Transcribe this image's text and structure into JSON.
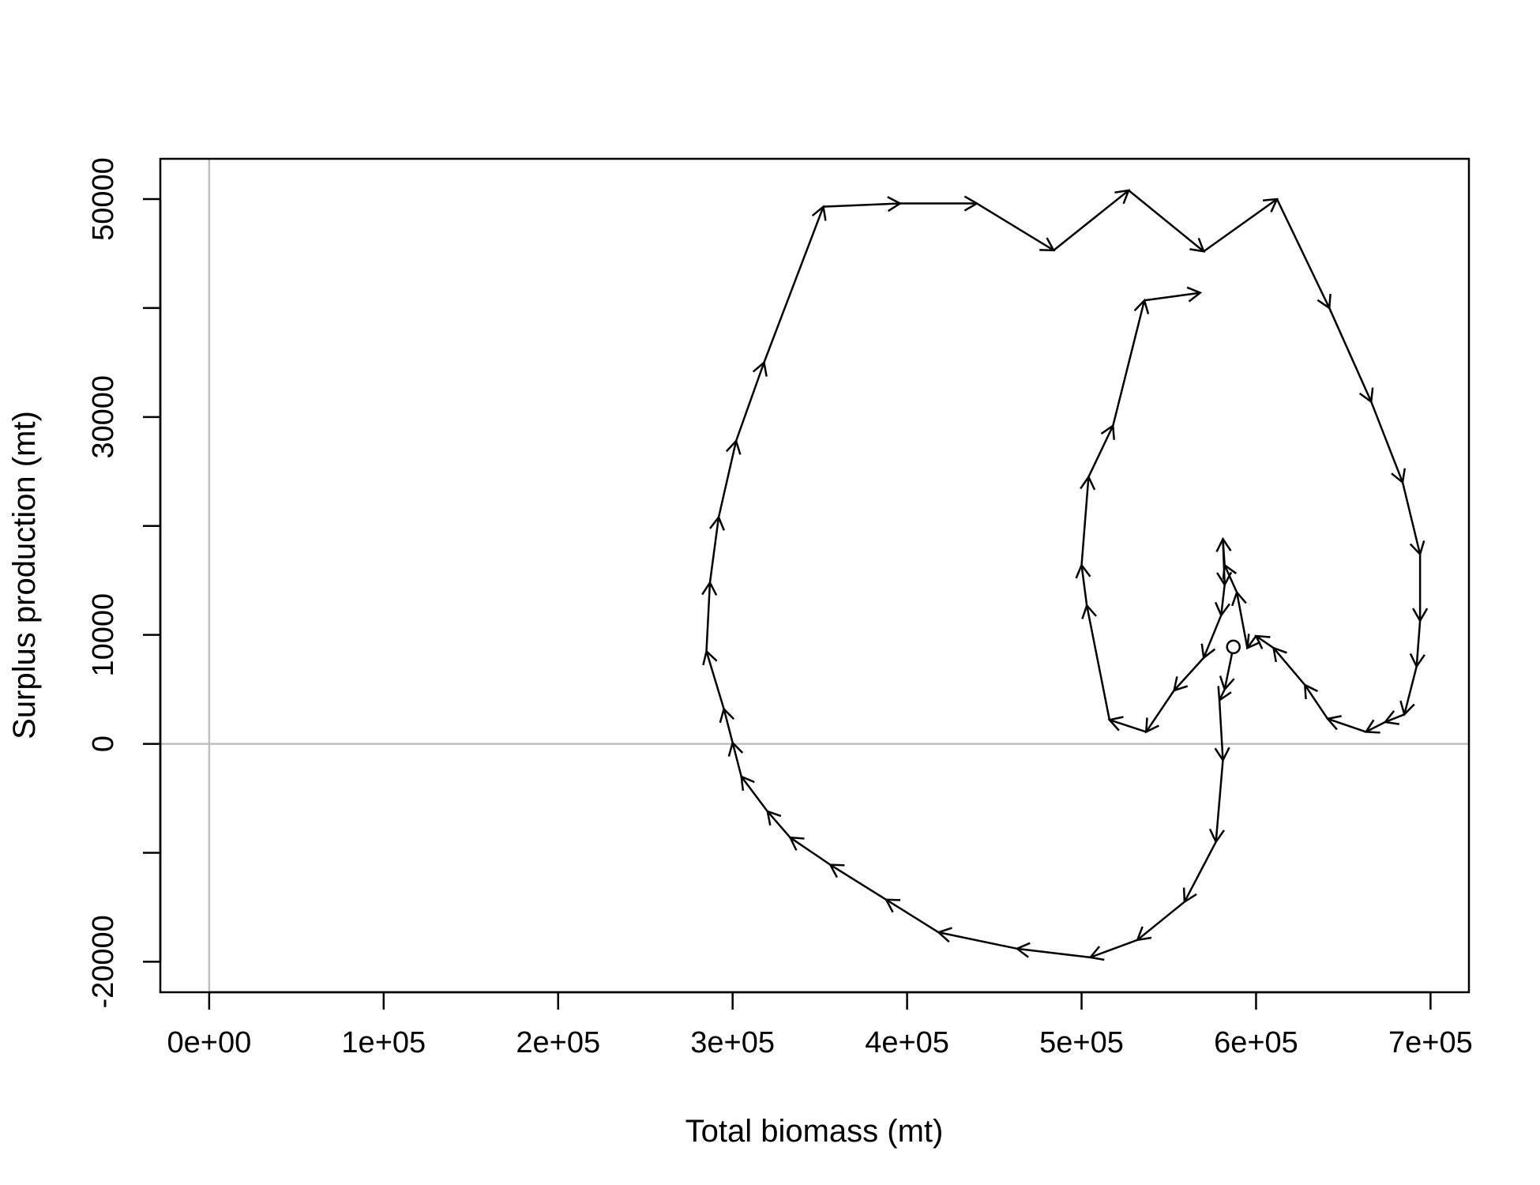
{
  "chart_data": {
    "type": "line",
    "title": "",
    "xlabel": "Total biomass (mt)",
    "ylabel": "Surplus production (mt)",
    "xlim": [
      -28000,
      722000
    ],
    "ylim": [
      -22800,
      53700
    ],
    "x_ticks": [
      0,
      100000,
      200000,
      300000,
      400000,
      500000,
      600000,
      700000
    ],
    "x_tick_labels": [
      "0e+00",
      "1e+05",
      "2e+05",
      "3e+05",
      "4e+05",
      "5e+05",
      "6e+05",
      "7e+05"
    ],
    "y_ticks": [
      -20000,
      -10000,
      0,
      10000,
      20000,
      30000,
      40000,
      50000
    ],
    "y_tick_labels": [
      "-20000",
      "",
      "0",
      "10000",
      "",
      "30000",
      "",
      "50000"
    ],
    "reference_lines": {
      "x": 0,
      "y": 0,
      "color": "#bebebe"
    },
    "line_color": "#000000",
    "grid": false,
    "start_marker": {
      "x": 587000,
      "y": 8900,
      "shape": "open-circle"
    },
    "series": [
      {
        "points": [
          [
            587000,
            8900
          ],
          [
            582000,
            5000
          ],
          [
            579000,
            4000
          ],
          [
            581000,
            -1500
          ],
          [
            577000,
            -9000
          ],
          [
            559000,
            -14500
          ],
          [
            532000,
            -18000
          ],
          [
            505000,
            -19600
          ],
          [
            463000,
            -18800
          ],
          [
            418000,
            -17300
          ],
          [
            388000,
            -14300
          ],
          [
            356000,
            -11100
          ],
          [
            333000,
            -8600
          ],
          [
            320000,
            -6200
          ],
          [
            305000,
            -3000
          ],
          [
            300000,
            100
          ],
          [
            295000,
            3200
          ],
          [
            285000,
            8500
          ],
          [
            287000,
            14800
          ],
          [
            292000,
            20800
          ],
          [
            302000,
            27800
          ],
          [
            318000,
            35000
          ],
          [
            352000,
            49300
          ],
          [
            396000,
            49600
          ],
          [
            440000,
            49600
          ],
          [
            484000,
            45300
          ],
          [
            527000,
            50800
          ],
          [
            570000,
            45200
          ],
          [
            612000,
            50000
          ],
          [
            642000,
            40000
          ],
          [
            666000,
            31400
          ],
          [
            684000,
            24000
          ],
          [
            694000,
            17400
          ],
          [
            694000,
            11300
          ],
          [
            692000,
            7100
          ],
          [
            685000,
            2700
          ],
          [
            674000,
            2000
          ],
          [
            663000,
            1100
          ],
          [
            641000,
            2300
          ],
          [
            628000,
            5400
          ],
          [
            610000,
            8800
          ],
          [
            600000,
            9900
          ],
          [
            595000,
            8800
          ],
          [
            589000,
            13900
          ],
          [
            582000,
            16400
          ],
          [
            581000,
            18800
          ],
          [
            582000,
            14600
          ],
          [
            580000,
            11800
          ],
          [
            570000,
            7900
          ],
          [
            553000,
            4900
          ],
          [
            537000,
            1100
          ],
          [
            516000,
            2200
          ],
          [
            503000,
            12700
          ],
          [
            500000,
            16400
          ],
          [
            504000,
            24500
          ],
          [
            518000,
            29200
          ],
          [
            536000,
            40700
          ],
          [
            568000,
            41400
          ]
        ]
      }
    ]
  }
}
